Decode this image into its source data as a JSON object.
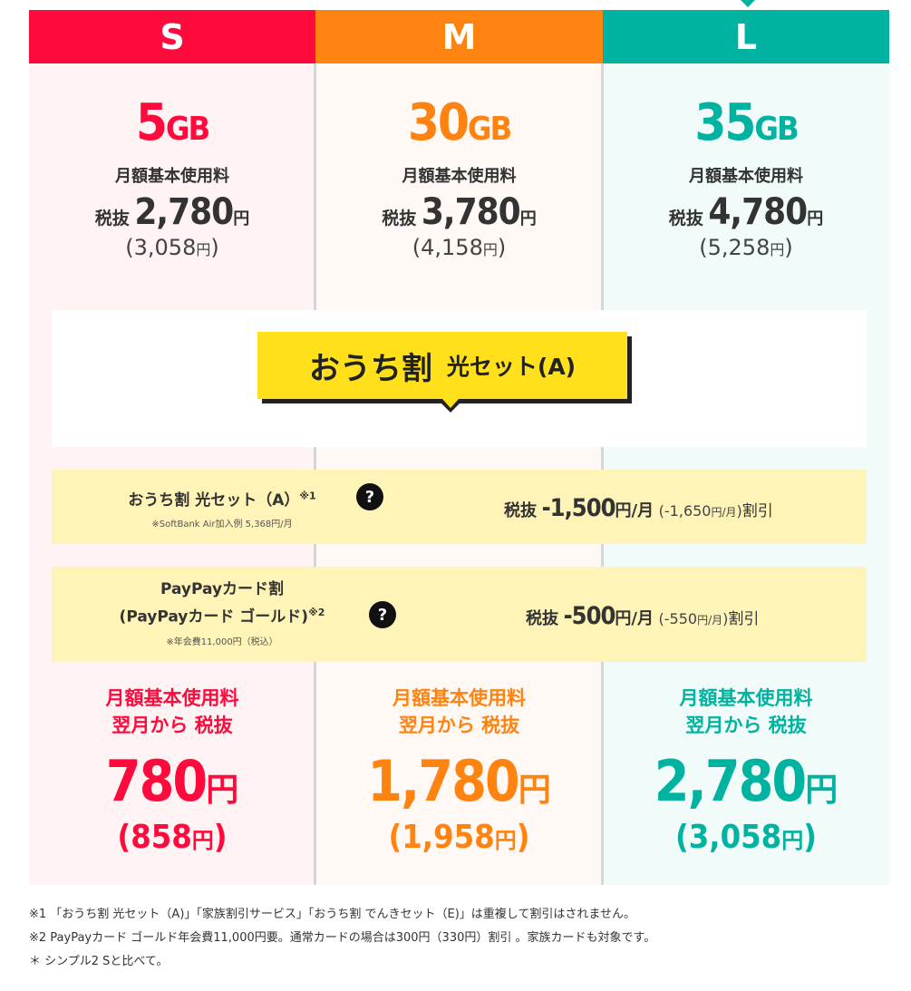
{
  "colors": {
    "s": "#ff0a3c",
    "m": "#ff8311",
    "l": "#00b3a0",
    "discount_bg": "#fff4b8",
    "tag_bg": "#ffe01b"
  },
  "plans": [
    {
      "name": "S",
      "gb_num": "5",
      "gb_unit": "GB",
      "base_label": "月額基本使用料",
      "tax_ex_label": "税抜",
      "price": "2,780",
      "yen": "円",
      "taxin_open": "(",
      "taxin_val": "3,058",
      "taxin_close": ")",
      "final_label1": "月額基本使用料",
      "final_label2": "翌月から 税抜",
      "final_price": "780",
      "final_taxin_open": "(",
      "final_taxin_val": "858",
      "final_taxin_close": ")"
    },
    {
      "name": "M",
      "gb_num": "30",
      "gb_unit": "GB",
      "base_label": "月額基本使用料",
      "tax_ex_label": "税抜",
      "price": "3,780",
      "yen": "円",
      "taxin_open": "(",
      "taxin_val": "4,158",
      "taxin_close": ")",
      "final_label1": "月額基本使用料",
      "final_label2": "翌月から 税抜",
      "final_price": "1,780",
      "final_taxin_open": "(",
      "final_taxin_val": "1,958",
      "final_taxin_close": ")"
    },
    {
      "name": "L",
      "gb_num": "35",
      "gb_unit": "GB",
      "base_label": "月額基本使用料",
      "tax_ex_label": "税抜",
      "price": "4,780",
      "yen": "円",
      "taxin_open": "(",
      "taxin_val": "5,258",
      "taxin_close": ")",
      "final_label1": "月額基本使用料",
      "final_label2": "翌月から 税抜",
      "final_price": "2,780",
      "final_taxin_open": "(",
      "final_taxin_val": "3,058",
      "final_taxin_close": ")"
    }
  ],
  "banner": {
    "main": "おうち割",
    "sub": "光セット(A)"
  },
  "discounts": [
    {
      "title": "おうち割 光セット（A）",
      "sup": "※1",
      "note": "※SoftBank Air加入例 5,368円/月",
      "help": "?",
      "pre": "税抜",
      "amount": "-1,500",
      "unit": "円/月",
      "taxin": "(-1,650",
      "taxin_unit": "円/月",
      "taxin_close": ")",
      "suffix": "割引"
    },
    {
      "title_line1": "PayPayカード割",
      "title_line2": "(PayPayカード ゴールド)",
      "sup": "※2",
      "note": "※年会費11,000円（税込）",
      "help": "?",
      "pre": "税抜",
      "amount": "-500",
      "unit": "円/月",
      "taxin": "(-550",
      "taxin_unit": "円/月",
      "taxin_close": ")",
      "suffix": "割引"
    }
  ],
  "notes": [
    "※1 「おうち割 光セット（A)」「家族割引サービス」「おうち割 でんきセット（E)」は重複して割引はされません。",
    "※2 PayPayカード ゴールド年会費11,000円要。通常カードの場合は300円（330円）割引 。家族カードも対象です。",
    "＊ シンプル2 Sと比べて。"
  ]
}
